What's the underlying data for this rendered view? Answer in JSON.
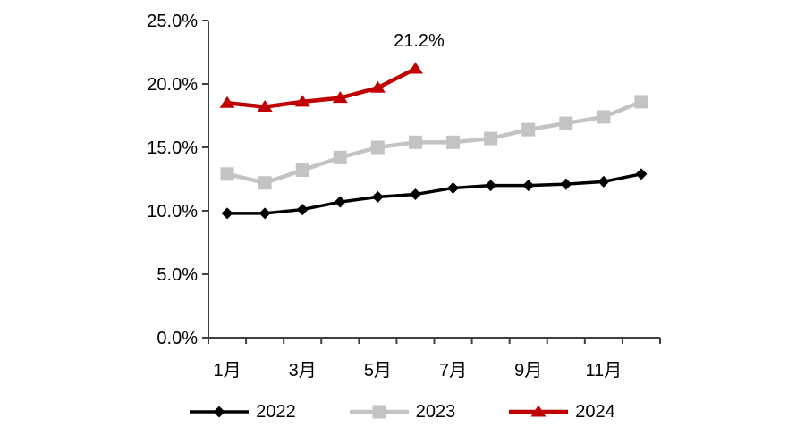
{
  "chart_data": {
    "type": "line",
    "title": "",
    "x_axis": {
      "categories": [
        "1月",
        "2月",
        "3月",
        "4月",
        "5月",
        "6月",
        "7月",
        "8月",
        "9月",
        "10月",
        "11月",
        "12月"
      ],
      "shown_tick_labels": [
        "1月",
        "3月",
        "5月",
        "7月",
        "9月",
        "11月"
      ],
      "shown_tick_months": [
        1,
        3,
        5,
        7,
        9,
        11
      ]
    },
    "y_axis": {
      "tick_labels": [
        "0.0%",
        "5.0%",
        "10.0%",
        "15.0%",
        "20.0%",
        "25.0%"
      ],
      "min": 0,
      "max": 25,
      "step": 5,
      "unit": "%"
    },
    "grid": "off",
    "legend_position": "bottom",
    "annotation": {
      "text": "21.2%",
      "series": "2024",
      "month": "6月",
      "value": 21.2
    },
    "series": [
      {
        "name": "2022",
        "color": "#000000",
        "marker": "diamond",
        "values": [
          9.8,
          9.8,
          10.1,
          10.7,
          11.1,
          11.3,
          11.8,
          12.0,
          12.0,
          12.1,
          12.3,
          12.9
        ]
      },
      {
        "name": "2023",
        "color": "#c3c3c3",
        "marker": "square",
        "values": [
          12.9,
          12.2,
          13.2,
          14.2,
          15.0,
          15.4,
          15.4,
          15.7,
          16.4,
          16.9,
          17.4,
          18.6
        ]
      },
      {
        "name": "2024",
        "color": "#c00000",
        "marker": "triangle",
        "values": [
          18.5,
          18.2,
          18.6,
          18.9,
          19.7,
          21.2
        ]
      }
    ],
    "axis_color": "#404040"
  }
}
